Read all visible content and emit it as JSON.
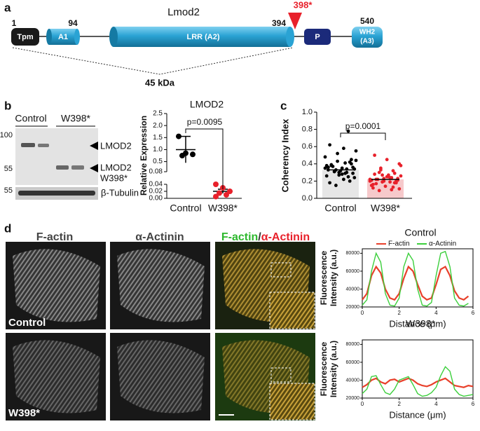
{
  "panel_a": {
    "label": "a",
    "title": "Lmod2",
    "mutation": "398*",
    "positions": {
      "start": "1",
      "a1_end": "94",
      "lrr_end": "394",
      "end": "540"
    },
    "domains": {
      "tpm": "Tpm",
      "a1": "A1",
      "lrr": "LRR (A2)",
      "p": "P",
      "wh2": [
        "WH2",
        "(A3)"
      ]
    },
    "mass": "45 kDa"
  },
  "panel_b": {
    "label": "b",
    "blot": {
      "lanes": [
        "Control",
        "W398*"
      ],
      "markers": [
        "100",
        "55",
        "55"
      ],
      "band_full": "LMOD2",
      "band_mut": [
        "LMOD2",
        "W398*"
      ],
      "loading": "β-Tubulin"
    },
    "chart": {
      "type": "scatter",
      "title": "LMOD2",
      "ylabel": "Relative Expression",
      "categories": [
        "Control",
        "W398*"
      ],
      "groups": [
        {
          "color": "#000000",
          "values": [
            1.55,
            0.85,
            0.8,
            0.75
          ],
          "mean": 1.0,
          "error": 0.55
        },
        {
          "color": "#e8212b",
          "values": [
            0.04,
            0.03,
            0.02,
            0.015,
            0.01,
            0.005
          ],
          "mean": 0.02,
          "error": 0.006
        }
      ],
      "ylim_lower": [
        0,
        0.04
      ],
      "yticks_lower": [
        {
          "value": 0,
          "label": "0.00"
        },
        0.02,
        0.04
      ],
      "ylim_upper": [
        0.08,
        2.5
      ],
      "yticks_upper": [
        0.08,
        0.5,
        {
          "value": 1,
          "label": "1.0"
        },
        1.5,
        {
          "value": 2,
          "label": "2.0"
        },
        2.5
      ],
      "annotation": "p=0.0095"
    }
  },
  "panel_c": {
    "label": "c",
    "chart": {
      "type": "bar-scatter",
      "ylabel": "Coherency Index",
      "categories": [
        "Control",
        "W398*"
      ],
      "groups": [
        {
          "color": "#000000",
          "bar_color": "#e6e6e6",
          "mean": 0.33,
          "values": [
            0.35,
            0.42,
            0.28,
            0.31,
            0.38,
            0.45,
            0.22,
            0.33,
            0.36,
            0.29,
            0.41,
            0.52,
            0.18,
            0.34,
            0.3,
            0.27,
            0.39,
            0.44,
            0.25,
            0.32,
            0.37,
            0.48,
            0.2,
            0.35,
            0.31,
            0.26,
            0.4,
            0.58,
            0.15,
            0.33,
            0.36,
            0.29,
            0.43,
            0.62,
            0.24,
            0.34,
            0.3,
            0.38,
            0.55,
            0.78
          ]
        },
        {
          "color": "#e8212b",
          "bar_color": "#f6c9cb",
          "mean": 0.22,
          "values": [
            0.22,
            0.18,
            0.25,
            0.3,
            0.15,
            0.2,
            0.27,
            0.35,
            0.12,
            0.21,
            0.24,
            0.19,
            0.28,
            0.4,
            0.1,
            0.23,
            0.17,
            0.26,
            0.32,
            0.14,
            0.22,
            0.2,
            0.29,
            0.45,
            0.09,
            0.21,
            0.18,
            0.25,
            0.33,
            0.16,
            0.23,
            0.19,
            0.27,
            0.5,
            0.11,
            0.24,
            0.2,
            0.22,
            0.38,
            0.13
          ]
        }
      ],
      "ylim": [
        0,
        1
      ],
      "yticks": [
        {
          "value": 0,
          "label": "0.0"
        },
        0.2,
        0.4,
        0.6,
        0.8,
        {
          "value": 1,
          "label": "1.0"
        }
      ],
      "annotation": "p=0.0001"
    }
  },
  "panel_d": {
    "label": "d",
    "columns": [
      "F-actin",
      "α-Actinin"
    ],
    "merge": [
      "F-actin",
      "/",
      "α-Actinin"
    ],
    "rows": [
      "Control",
      "W398*"
    ],
    "charts": [
      {
        "type": "line",
        "title": "Control",
        "xlabel": "Distance (μm)",
        "ylabel": [
          "Fluorescence",
          "Intensity (a.u.)"
        ],
        "xlim": [
          0,
          6
        ],
        "xticks": [
          0,
          2,
          4,
          6
        ],
        "ylim": [
          20000,
          85000
        ],
        "yticks": [
          20000,
          40000,
          60000,
          80000
        ],
        "x": [
          0,
          0.25,
          0.5,
          0.75,
          1,
          1.25,
          1.5,
          1.75,
          2,
          2.25,
          2.5,
          2.75,
          3,
          3.25,
          3.5,
          3.75,
          4,
          4.25,
          4.5,
          4.75,
          5,
          5.25,
          5.5,
          5.75
        ],
        "series": [
          {
            "name": "F-actin",
            "color": "#e8402b",
            "values": [
              28000,
              35000,
              55000,
              65000,
              58000,
              40000,
              30000,
              28000,
              35000,
              52000,
              65000,
              60000,
              45000,
              32000,
              28000,
              30000,
              45000,
              62000,
              65000,
              55000,
              38000,
              30000,
              28000,
              32000
            ]
          },
          {
            "name": "α-Actinin",
            "color": "#3ccf3c",
            "values": [
              22000,
              28000,
              60000,
              80000,
              70000,
              35000,
              22000,
              21000,
              30000,
              65000,
              80000,
              72000,
              40000,
              22000,
              21000,
              25000,
              55000,
              80000,
              82000,
              65000,
              30000,
              22000,
              21000,
              24000
            ]
          }
        ]
      },
      {
        "type": "line",
        "title": "W398*",
        "xlabel": "Distance (μm)",
        "ylabel": [
          "Fluorescence",
          "Intensity (a.u.)"
        ],
        "xlim": [
          0,
          6
        ],
        "xticks": [
          0,
          2,
          4,
          6
        ],
        "ylim": [
          20000,
          85000
        ],
        "yticks": [
          20000,
          40000,
          60000,
          80000
        ],
        "x": [
          0,
          0.25,
          0.5,
          0.75,
          1,
          1.25,
          1.5,
          1.75,
          2,
          2.25,
          2.5,
          2.75,
          3,
          3.25,
          3.5,
          3.75,
          4,
          4.25,
          4.5,
          4.75,
          5,
          5.25,
          5.5,
          5.75,
          6
        ],
        "series": [
          {
            "name": "F-actin",
            "color": "#e8402b",
            "values": [
              32000,
              35000,
              40000,
              42000,
              38000,
              36000,
              40000,
              41000,
              38000,
              40000,
              42000,
              40000,
              36000,
              34000,
              33000,
              35000,
              38000,
              40000,
              42000,
              38000,
              34000,
              33000,
              32000,
              34000,
              33000
            ]
          },
          {
            "name": "α-Actinin",
            "color": "#3ccf3c",
            "values": [
              25000,
              30000,
              44000,
              45000,
              35000,
              26000,
              24000,
              30000,
              40000,
              42000,
              44000,
              35000,
              25000,
              22000,
              23000,
              26000,
              32000,
              45000,
              55000,
              50000,
              30000,
              24000,
              22000,
              23000,
              24000
            ]
          }
        ]
      }
    ]
  }
}
